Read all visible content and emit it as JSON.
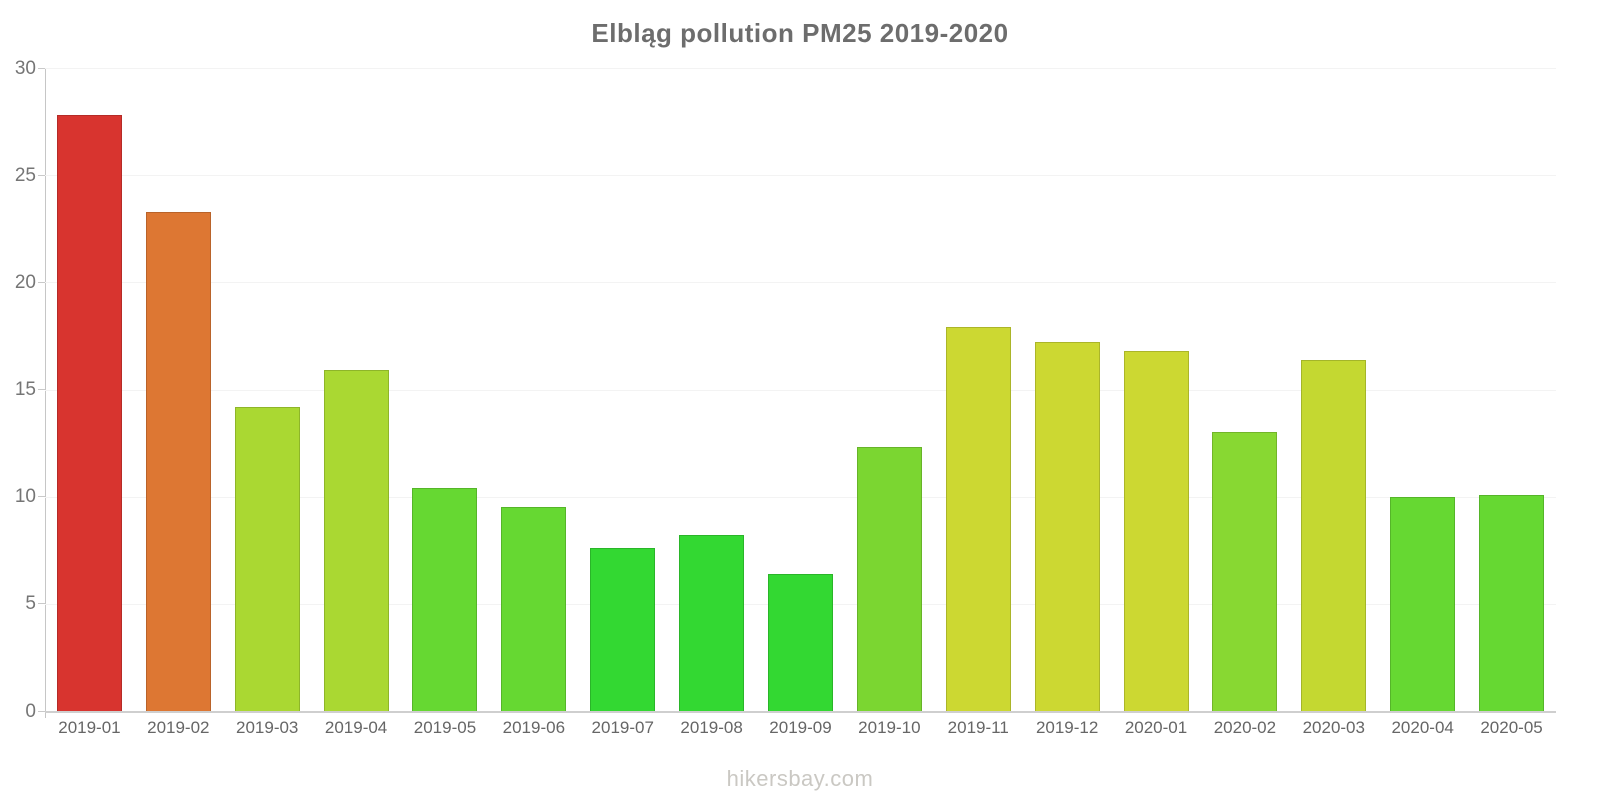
{
  "title": "Elbląg pollution PM25 2019-2020",
  "footer": "hikersbay.com",
  "chart_data": {
    "type": "bar",
    "title": "Elbląg pollution PM25 2019-2020",
    "xlabel": "",
    "ylabel": "",
    "ylim": [
      0,
      30
    ],
    "yticks": [
      0,
      5,
      10,
      15,
      20,
      25,
      30
    ],
    "grid": "horizontal",
    "legend": "none",
    "categories": [
      "2019-01",
      "2019-02",
      "2019-03",
      "2019-04",
      "2019-05",
      "2019-06",
      "2019-07",
      "2019-08",
      "2019-09",
      "2019-10",
      "2019-11",
      "2019-12",
      "2020-01",
      "2020-02",
      "2020-03",
      "2020-04",
      "2020-05"
    ],
    "values": [
      27.8,
      23.3,
      14.2,
      15.9,
      10.4,
      9.5,
      7.6,
      8.2,
      6.4,
      12.3,
      17.9,
      17.2,
      16.8,
      13.0,
      16.4,
      10.0,
      10.1
    ],
    "bar_colors": [
      "#d8342f",
      "#dd7733",
      "#aad832",
      "#aad832",
      "#66d832",
      "#66d832",
      "#33d832",
      "#33d832",
      "#33d832",
      "#7bd631",
      "#ccd832",
      "#ccd832",
      "#ccd832",
      "#88d832",
      "#c4d831",
      "#66d832",
      "#66d832"
    ]
  },
  "style": {
    "title_color": "#6d6d6d",
    "axis_color": "#c6c6c6",
    "gridline_color": "#f3f3f3",
    "y_tick_label_color": "#757575",
    "x_label_color": "#666666",
    "footer_color": "#cac8c3",
    "background": "#ffffff"
  }
}
